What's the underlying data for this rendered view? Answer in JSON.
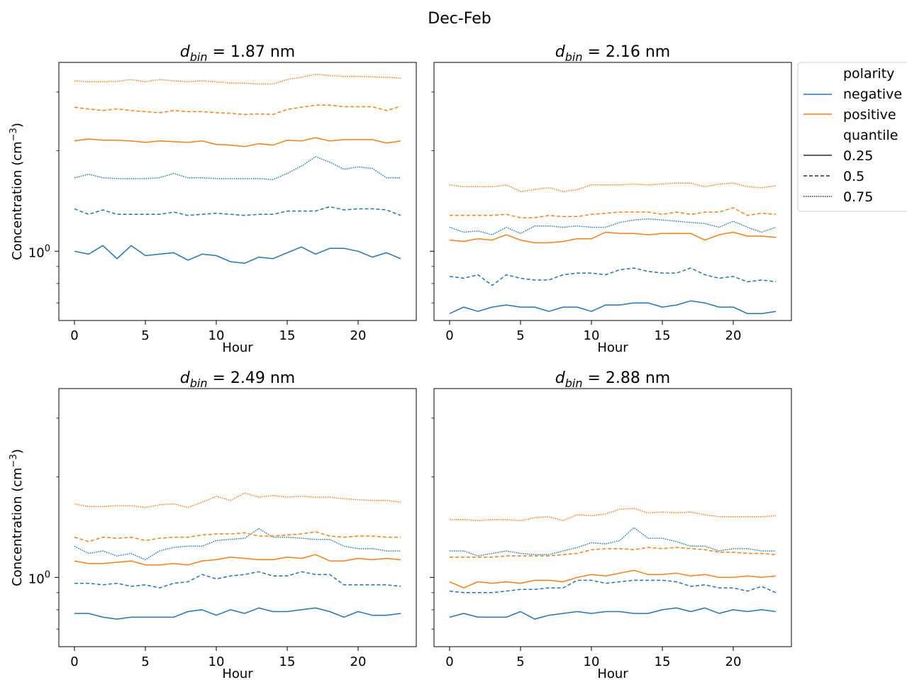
{
  "suptitle": "Dec-Feb",
  "colors": {
    "negative": "#1f77b4",
    "positive": "#ff7f0e"
  },
  "legend": {
    "placement": "upper-right-outside",
    "polarity_header": "polarity",
    "negative_label": "negative",
    "positive_label": "positive",
    "quantile_header": "quantile",
    "q025_label": "0.25",
    "q05_label": "0.5",
    "q075_label": "0.75"
  },
  "chart_data": [
    {
      "type": "line",
      "title_prefix": "d",
      "title_sub": "bin",
      "title_suffix": "=  1.87 nm",
      "xlabel": "Hour",
      "ylabel": "Concentration (cm",
      "ylabel_sup": "−3",
      "ylabel_end": ")",
      "yscale": "log",
      "xlim": [
        -1.1,
        24.1
      ],
      "ylim": [
        0.62,
        3.68
      ],
      "x_ticks": [
        0,
        5,
        10,
        15,
        20
      ],
      "y_tick_label": "10",
      "y_tick_sup": "0",
      "x": [
        0,
        1,
        2,
        3,
        4,
        5,
        6,
        7,
        8,
        9,
        10,
        11,
        12,
        13,
        14,
        15,
        16,
        17,
        18,
        19,
        20,
        21,
        22,
        23
      ],
      "series": [
        {
          "polarity": "negative",
          "quantile": "0.25",
          "values": [
            1.0,
            0.98,
            1.04,
            0.95,
            1.04,
            0.97,
            0.98,
            0.99,
            0.94,
            0.98,
            0.97,
            0.93,
            0.92,
            0.96,
            0.95,
            0.99,
            1.03,
            0.98,
            1.02,
            1.02,
            1.0,
            0.96,
            0.99,
            0.95
          ]
        },
        {
          "polarity": "negative",
          "quantile": "0.5",
          "values": [
            1.34,
            1.29,
            1.33,
            1.29,
            1.29,
            1.29,
            1.29,
            1.31,
            1.28,
            1.29,
            1.3,
            1.29,
            1.28,
            1.29,
            1.29,
            1.32,
            1.32,
            1.32,
            1.36,
            1.33,
            1.34,
            1.34,
            1.33,
            1.28
          ]
        },
        {
          "polarity": "negative",
          "quantile": "0.75",
          "values": [
            1.66,
            1.7,
            1.66,
            1.65,
            1.65,
            1.65,
            1.66,
            1.71,
            1.66,
            1.66,
            1.65,
            1.65,
            1.65,
            1.65,
            1.64,
            1.71,
            1.8,
            1.92,
            1.85,
            1.76,
            1.79,
            1.77,
            1.66,
            1.66
          ]
        },
        {
          "polarity": "positive",
          "quantile": "0.25",
          "values": [
            2.14,
            2.17,
            2.15,
            2.15,
            2.14,
            2.12,
            2.14,
            2.13,
            2.12,
            2.14,
            2.09,
            2.08,
            2.06,
            2.1,
            2.08,
            2.15,
            2.14,
            2.19,
            2.14,
            2.16,
            2.16,
            2.16,
            2.11,
            2.14
          ]
        },
        {
          "polarity": "positive",
          "quantile": "0.5",
          "values": [
            2.7,
            2.67,
            2.64,
            2.67,
            2.64,
            2.62,
            2.6,
            2.64,
            2.62,
            2.62,
            2.6,
            2.59,
            2.57,
            2.58,
            2.57,
            2.66,
            2.7,
            2.74,
            2.74,
            2.71,
            2.71,
            2.71,
            2.64,
            2.72
          ]
        },
        {
          "polarity": "positive",
          "quantile": "0.75",
          "values": [
            3.24,
            3.22,
            3.22,
            3.23,
            3.27,
            3.22,
            3.27,
            3.24,
            3.22,
            3.24,
            3.22,
            3.19,
            3.19,
            3.17,
            3.17,
            3.27,
            3.32,
            3.39,
            3.36,
            3.34,
            3.34,
            3.33,
            3.32,
            3.3
          ]
        }
      ]
    },
    {
      "type": "line",
      "title_prefix": "d",
      "title_sub": "bin",
      "title_suffix": "=  2.16 nm",
      "xlabel": "Hour",
      "ylabel": "",
      "yscale": "log",
      "xlim": [
        -1.1,
        24.1
      ],
      "ylim": [
        0.62,
        3.68
      ],
      "x_ticks": [
        0,
        5,
        10,
        15,
        20
      ],
      "x": [
        0,
        1,
        2,
        3,
        4,
        5,
        6,
        7,
        8,
        9,
        10,
        11,
        12,
        13,
        14,
        15,
        16,
        17,
        18,
        19,
        20,
        21,
        22,
        23
      ],
      "series": [
        {
          "polarity": "negative",
          "quantile": "0.25",
          "values": [
            0.65,
            0.68,
            0.66,
            0.68,
            0.69,
            0.68,
            0.68,
            0.66,
            0.68,
            0.68,
            0.66,
            0.69,
            0.69,
            0.7,
            0.7,
            0.68,
            0.69,
            0.71,
            0.7,
            0.68,
            0.68,
            0.65,
            0.65,
            0.66
          ]
        },
        {
          "polarity": "negative",
          "quantile": "0.5",
          "values": [
            0.84,
            0.83,
            0.85,
            0.79,
            0.85,
            0.83,
            0.82,
            0.82,
            0.85,
            0.86,
            0.86,
            0.85,
            0.88,
            0.89,
            0.87,
            0.86,
            0.86,
            0.89,
            0.85,
            0.83,
            0.84,
            0.81,
            0.82,
            0.81
          ]
        },
        {
          "polarity": "negative",
          "quantile": "0.75",
          "values": [
            1.18,
            1.14,
            1.15,
            1.12,
            1.18,
            1.13,
            1.19,
            1.19,
            1.18,
            1.19,
            1.18,
            1.18,
            1.22,
            1.24,
            1.25,
            1.24,
            1.23,
            1.22,
            1.21,
            1.18,
            1.23,
            1.18,
            1.14,
            1.18
          ]
        },
        {
          "polarity": "positive",
          "quantile": "0.25",
          "values": [
            1.08,
            1.07,
            1.09,
            1.08,
            1.12,
            1.08,
            1.06,
            1.06,
            1.07,
            1.09,
            1.09,
            1.14,
            1.13,
            1.13,
            1.12,
            1.13,
            1.13,
            1.13,
            1.08,
            1.12,
            1.14,
            1.11,
            1.11,
            1.1
          ]
        },
        {
          "polarity": "positive",
          "quantile": "0.5",
          "values": [
            1.28,
            1.28,
            1.28,
            1.28,
            1.29,
            1.26,
            1.26,
            1.28,
            1.27,
            1.27,
            1.29,
            1.3,
            1.31,
            1.31,
            1.31,
            1.29,
            1.31,
            1.29,
            1.31,
            1.31,
            1.35,
            1.28,
            1.3,
            1.29
          ]
        },
        {
          "polarity": "positive",
          "quantile": "0.75",
          "values": [
            1.58,
            1.56,
            1.56,
            1.56,
            1.58,
            1.51,
            1.53,
            1.55,
            1.51,
            1.53,
            1.58,
            1.58,
            1.58,
            1.59,
            1.58,
            1.59,
            1.6,
            1.6,
            1.56,
            1.59,
            1.6,
            1.56,
            1.55,
            1.57
          ]
        }
      ]
    },
    {
      "type": "line",
      "title_prefix": "d",
      "title_sub": "bin",
      "title_suffix": "=  2.49 nm",
      "xlabel": "Hour",
      "ylabel": "Concentration (cm",
      "ylabel_sup": "−3",
      "ylabel_end": ")",
      "yscale": "log",
      "xlim": [
        -1.1,
        24.1
      ],
      "ylim": [
        0.62,
        3.68
      ],
      "x_ticks": [
        0,
        5,
        10,
        15,
        20
      ],
      "y_tick_label": "10",
      "y_tick_sup": "0",
      "x": [
        0,
        1,
        2,
        3,
        4,
        5,
        6,
        7,
        8,
        9,
        10,
        11,
        12,
        13,
        14,
        15,
        16,
        17,
        18,
        19,
        20,
        21,
        22,
        23
      ],
      "series": [
        {
          "polarity": "negative",
          "quantile": "0.25",
          "values": [
            0.78,
            0.78,
            0.76,
            0.75,
            0.76,
            0.76,
            0.76,
            0.76,
            0.79,
            0.8,
            0.77,
            0.8,
            0.78,
            0.81,
            0.79,
            0.79,
            0.8,
            0.81,
            0.79,
            0.76,
            0.79,
            0.77,
            0.77,
            0.78
          ]
        },
        {
          "polarity": "negative",
          "quantile": "0.5",
          "values": [
            0.96,
            0.96,
            0.95,
            0.96,
            0.94,
            0.95,
            0.93,
            0.96,
            0.97,
            1.02,
            0.99,
            1.01,
            1.02,
            1.04,
            1.01,
            1.01,
            1.04,
            1.02,
            1.02,
            0.95,
            0.95,
            0.95,
            0.95,
            0.94
          ]
        },
        {
          "polarity": "negative",
          "quantile": "0.75",
          "values": [
            1.24,
            1.18,
            1.2,
            1.16,
            1.18,
            1.13,
            1.2,
            1.23,
            1.24,
            1.24,
            1.29,
            1.3,
            1.31,
            1.4,
            1.32,
            1.32,
            1.31,
            1.3,
            1.3,
            1.24,
            1.22,
            1.22,
            1.2,
            1.2
          ]
        },
        {
          "polarity": "positive",
          "quantile": "0.25",
          "values": [
            1.12,
            1.1,
            1.1,
            1.11,
            1.12,
            1.09,
            1.09,
            1.1,
            1.09,
            1.12,
            1.13,
            1.15,
            1.14,
            1.13,
            1.13,
            1.15,
            1.14,
            1.17,
            1.12,
            1.12,
            1.14,
            1.13,
            1.14,
            1.13
          ]
        },
        {
          "polarity": "positive",
          "quantile": "0.5",
          "values": [
            1.32,
            1.28,
            1.32,
            1.31,
            1.32,
            1.29,
            1.31,
            1.32,
            1.32,
            1.34,
            1.35,
            1.35,
            1.36,
            1.33,
            1.33,
            1.34,
            1.35,
            1.37,
            1.33,
            1.32,
            1.33,
            1.33,
            1.32,
            1.32
          ]
        },
        {
          "polarity": "positive",
          "quantile": "0.75",
          "values": [
            1.66,
            1.63,
            1.63,
            1.64,
            1.64,
            1.62,
            1.65,
            1.66,
            1.62,
            1.68,
            1.75,
            1.7,
            1.79,
            1.74,
            1.76,
            1.74,
            1.75,
            1.74,
            1.74,
            1.72,
            1.71,
            1.7,
            1.7,
            1.68
          ]
        }
      ]
    },
    {
      "type": "line",
      "title_prefix": "d",
      "title_sub": "bin",
      "title_suffix": "=  2.88 nm",
      "xlabel": "Hour",
      "ylabel": "",
      "yscale": "log",
      "xlim": [
        -1.1,
        24.1
      ],
      "ylim": [
        0.62,
        3.68
      ],
      "x_ticks": [
        0,
        5,
        10,
        15,
        20
      ],
      "x": [
        0,
        1,
        2,
        3,
        4,
        5,
        6,
        7,
        8,
        9,
        10,
        11,
        12,
        13,
        14,
        15,
        16,
        17,
        18,
        19,
        20,
        21,
        22,
        23
      ],
      "series": [
        {
          "polarity": "negative",
          "quantile": "0.25",
          "values": [
            0.76,
            0.78,
            0.76,
            0.76,
            0.76,
            0.79,
            0.75,
            0.77,
            0.78,
            0.79,
            0.78,
            0.79,
            0.79,
            0.78,
            0.78,
            0.8,
            0.81,
            0.79,
            0.81,
            0.78,
            0.8,
            0.79,
            0.8,
            0.79
          ]
        },
        {
          "polarity": "negative",
          "quantile": "0.5",
          "values": [
            0.91,
            0.9,
            0.9,
            0.9,
            0.91,
            0.92,
            0.92,
            0.93,
            0.93,
            0.98,
            0.98,
            0.96,
            0.97,
            0.98,
            0.98,
            0.98,
            0.97,
            0.94,
            0.95,
            0.93,
            0.93,
            0.91,
            0.94,
            0.9
          ]
        },
        {
          "polarity": "negative",
          "quantile": "0.75",
          "values": [
            1.2,
            1.2,
            1.16,
            1.18,
            1.2,
            1.18,
            1.17,
            1.17,
            1.2,
            1.23,
            1.27,
            1.26,
            1.29,
            1.41,
            1.31,
            1.31,
            1.28,
            1.24,
            1.24,
            1.2,
            1.22,
            1.22,
            1.2,
            1.2
          ]
        },
        {
          "polarity": "positive",
          "quantile": "0.25",
          "values": [
            0.97,
            0.93,
            0.97,
            0.96,
            0.97,
            0.96,
            0.98,
            0.98,
            0.97,
            1.0,
            1.02,
            1.01,
            1.03,
            1.05,
            1.02,
            1.02,
            1.03,
            1.01,
            1.02,
            1.0,
            1.0,
            1.01,
            1.0,
            1.01
          ]
        },
        {
          "polarity": "positive",
          "quantile": "0.5",
          "values": [
            1.15,
            1.15,
            1.15,
            1.15,
            1.16,
            1.16,
            1.16,
            1.16,
            1.17,
            1.18,
            1.21,
            1.22,
            1.22,
            1.21,
            1.23,
            1.22,
            1.23,
            1.22,
            1.21,
            1.19,
            1.19,
            1.18,
            1.18,
            1.17
          ]
        },
        {
          "polarity": "positive",
          "quantile": "0.75",
          "values": [
            1.49,
            1.49,
            1.48,
            1.49,
            1.49,
            1.48,
            1.51,
            1.52,
            1.48,
            1.54,
            1.53,
            1.55,
            1.6,
            1.61,
            1.56,
            1.57,
            1.56,
            1.57,
            1.54,
            1.52,
            1.52,
            1.52,
            1.52,
            1.53
          ]
        }
      ]
    }
  ]
}
